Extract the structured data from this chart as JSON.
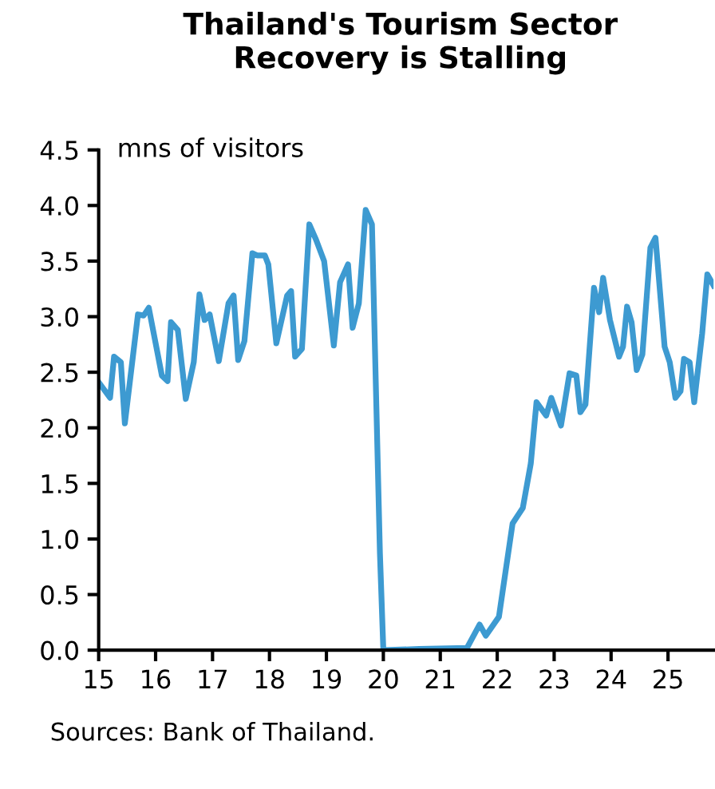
{
  "chart_data": {
    "type": "line",
    "title": "Thailand's Tourism Sector\nRecovery is Stalling",
    "ylabel": "mns of visitors",
    "annotations": [
      "Sources: Bank of Thailand."
    ],
    "series": [
      {
        "color": "#3d9ad1",
        "x": [
          15.0,
          15.2,
          15.27,
          15.39,
          15.46,
          15.69,
          15.79,
          15.88,
          16.11,
          16.21,
          16.27,
          16.39,
          16.53,
          16.67,
          16.77,
          16.86,
          16.95,
          17.11,
          17.28,
          17.37,
          17.45,
          17.56,
          17.7,
          17.79,
          17.92,
          17.98,
          18.12,
          18.31,
          18.38,
          18.45,
          18.57,
          18.7,
          18.82,
          18.96,
          19.13,
          19.24,
          19.38,
          19.46,
          19.57,
          19.69,
          19.8,
          19.94,
          20.0,
          20.63,
          21.47,
          21.69,
          21.8,
          22.03,
          22.27,
          22.45,
          22.59,
          22.69,
          22.86,
          22.95,
          23.12,
          23.27,
          23.39,
          23.46,
          23.55,
          23.7,
          23.79,
          23.86,
          23.98,
          24.14,
          24.21,
          24.28,
          24.36,
          24.45,
          24.55,
          24.69,
          24.78,
          24.94,
          25.03,
          25.13,
          25.22,
          25.28,
          25.38,
          25.46,
          25.6,
          25.69,
          25.8
        ],
        "values": [
          2.41,
          2.27,
          2.64,
          2.59,
          2.04,
          3.02,
          3.01,
          3.08,
          2.47,
          2.42,
          2.95,
          2.88,
          2.26,
          2.59,
          3.2,
          2.97,
          3.02,
          2.6,
          3.12,
          3.19,
          2.61,
          2.78,
          3.57,
          3.55,
          3.55,
          3.47,
          2.76,
          3.19,
          3.23,
          2.64,
          2.71,
          3.83,
          3.69,
          3.5,
          2.74,
          3.31,
          3.47,
          2.9,
          3.12,
          3.96,
          3.83,
          0.87,
          0.0,
          0.01,
          0.02,
          0.23,
          0.13,
          0.3,
          1.14,
          1.28,
          1.68,
          2.23,
          2.11,
          2.27,
          2.02,
          2.49,
          2.47,
          2.14,
          2.21,
          3.26,
          3.04,
          3.35,
          2.97,
          2.64,
          2.73,
          3.09,
          2.95,
          2.52,
          2.66,
          3.62,
          3.71,
          2.73,
          2.59,
          2.27,
          2.33,
          2.62,
          2.59,
          2.23,
          2.85,
          3.38,
          3.28
        ]
      }
    ],
    "xlim": [
      15,
      25.8
    ],
    "xticks": [
      15,
      16,
      17,
      18,
      19,
      20,
      21,
      22,
      23,
      24,
      25
    ],
    "ylim": [
      0,
      4.5
    ],
    "yticks": [
      {
        "value": 0,
        "label": "0.0"
      },
      {
        "value": 0.5,
        "label": "0.5"
      },
      {
        "value": 1,
        "label": "1.0"
      },
      {
        "value": 1.5,
        "label": "1.5"
      },
      {
        "value": 2,
        "label": "2.0"
      },
      {
        "value": 2.5,
        "label": "2.5"
      },
      {
        "value": 3,
        "label": "3.0"
      },
      {
        "value": 3.5,
        "label": "3.5"
      },
      {
        "value": 4,
        "label": "4.0"
      },
      {
        "value": 4.5,
        "label": "4.5"
      }
    ],
    "grid": false,
    "legend": false,
    "marker": "none",
    "line_style": "solid"
  }
}
